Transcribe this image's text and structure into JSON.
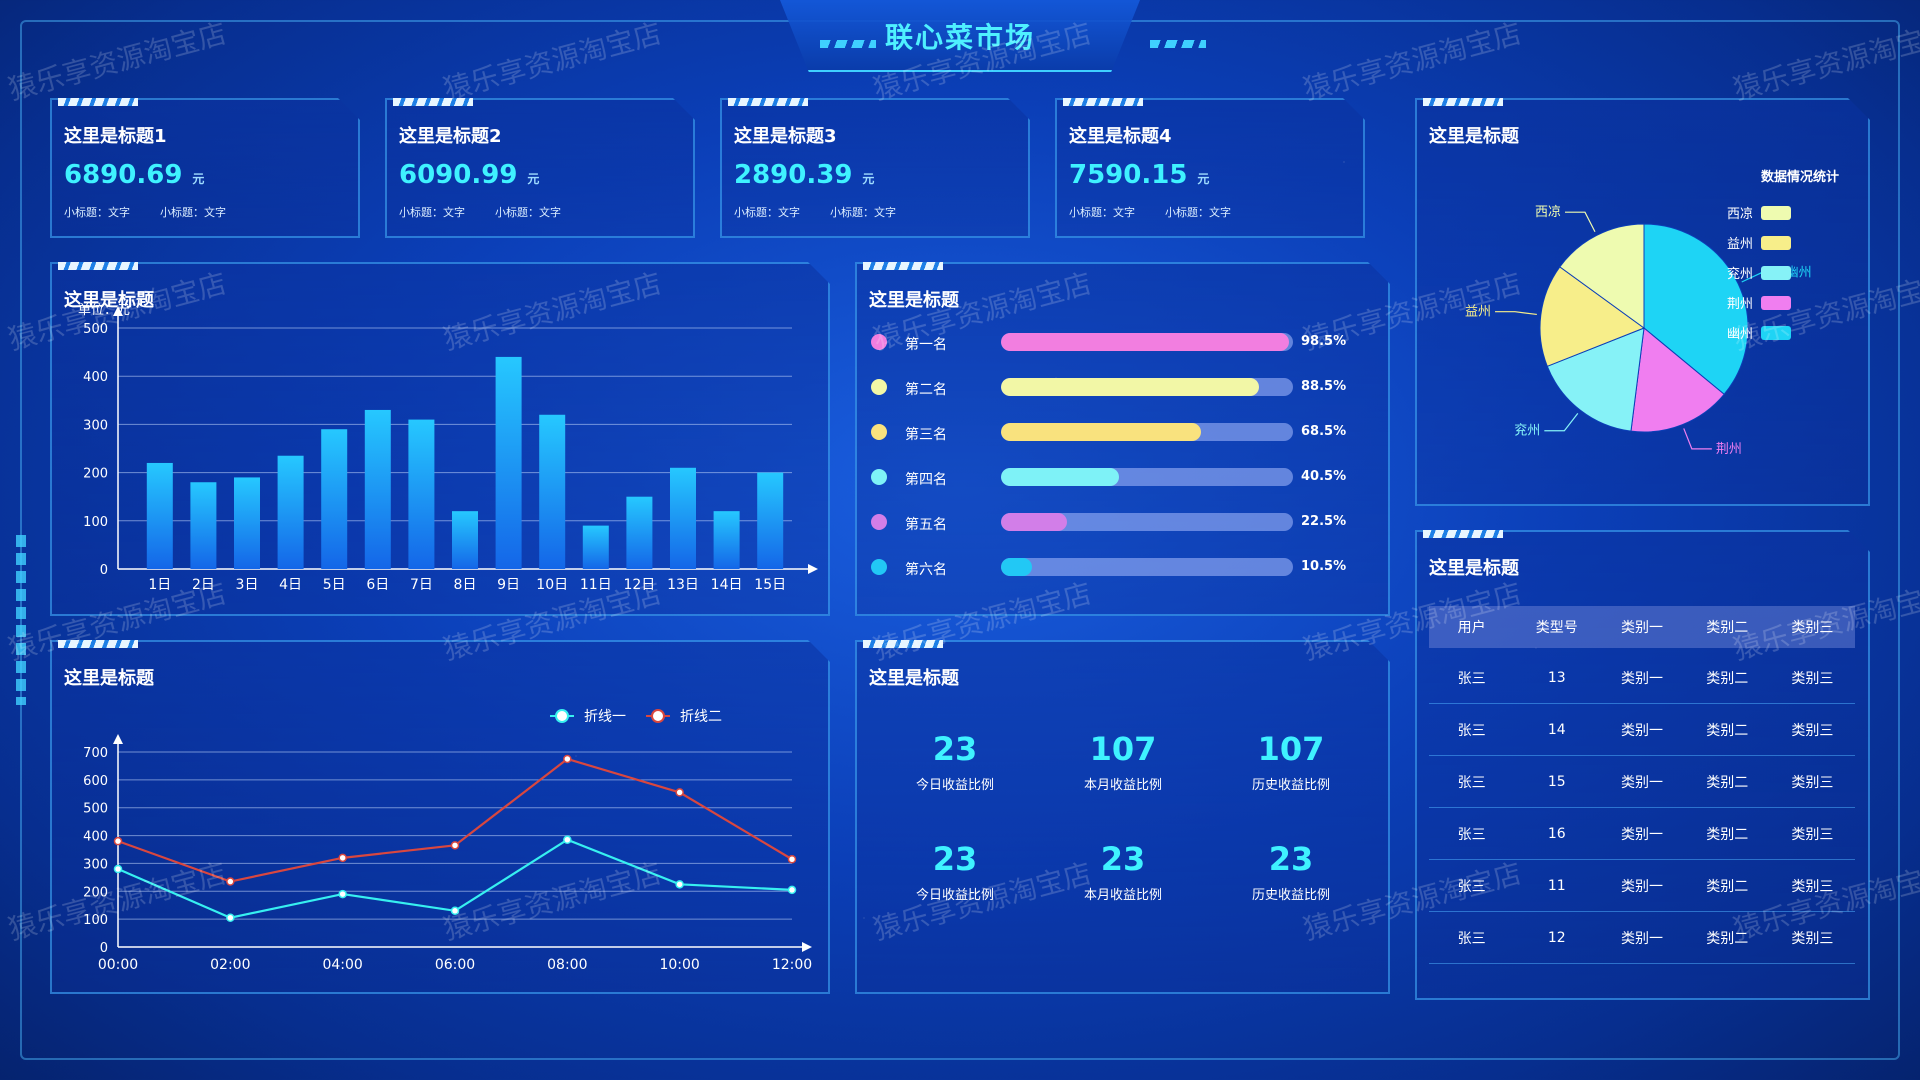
{
  "header": {
    "title": "联心菜市场"
  },
  "watermark": "猿乐享资源淘宝店",
  "stats": [
    {
      "title": "这里是标题1",
      "value": "6890.69",
      "unit": "元",
      "sub1": "小标题：文字",
      "sub2": "小标题：文字"
    },
    {
      "title": "这里是标题2",
      "value": "6090.99",
      "unit": "元",
      "sub1": "小标题：文字",
      "sub2": "小标题：文字"
    },
    {
      "title": "这里是标题3",
      "value": "2890.39",
      "unit": "元",
      "sub1": "小标题：文字",
      "sub2": "小标题：文字"
    },
    {
      "title": "这里是标题4",
      "value": "7590.15",
      "unit": "元",
      "sub1": "小标题：文字",
      "sub2": "小标题：文字"
    }
  ],
  "bar_panel": {
    "title": "这里是标题"
  },
  "line_panel": {
    "title": "这里是标题"
  },
  "rank_panel": {
    "title": "这里是标题",
    "items": [
      {
        "label": "第一名",
        "pct": "98.5%",
        "value": 98.5,
        "color": "#f27ee0"
      },
      {
        "label": "第二名",
        "pct": "88.5%",
        "value": 88.5,
        "color": "#f2f7a6"
      },
      {
        "label": "第三名",
        "pct": "68.5%",
        "value": 68.5,
        "color": "#f9e27e"
      },
      {
        "label": "第四名",
        "pct": "40.5%",
        "value": 40.5,
        "color": "#7ef2f7"
      },
      {
        "label": "第五名",
        "pct": "22.5%",
        "value": 22.5,
        "color": "#d27ee8"
      },
      {
        "label": "第六名",
        "pct": "10.5%",
        "value": 10.5,
        "color": "#22c8f5"
      }
    ]
  },
  "kpi_panel": {
    "title": "这里是标题",
    "items": [
      {
        "num": "23",
        "label": "今日收益比例"
      },
      {
        "num": "107",
        "label": "本月收益比例"
      },
      {
        "num": "107",
        "label": "历史收益比例"
      },
      {
        "num": "23",
        "label": "今日收益比例"
      },
      {
        "num": "23",
        "label": "本月收益比例"
      },
      {
        "num": "23",
        "label": "历史收益比例"
      }
    ]
  },
  "pie_panel": {
    "title": "这里是标题",
    "legend_title": "数据情况统计"
  },
  "table_panel": {
    "title": "这里是标题",
    "headers": [
      "用户",
      "类型号",
      "类别一",
      "类别二",
      "类别三"
    ],
    "rows": [
      [
        "张三",
        "13",
        "类别一",
        "类别二",
        "类别三"
      ],
      [
        "张三",
        "14",
        "类别一",
        "类别二",
        "类别三"
      ],
      [
        "张三",
        "15",
        "类别一",
        "类别二",
        "类别三"
      ],
      [
        "张三",
        "16",
        "类别一",
        "类别二",
        "类别三"
      ],
      [
        "张三",
        "11",
        "类别一",
        "类别二",
        "类别三"
      ],
      [
        "张三",
        "12",
        "类别一",
        "类别二",
        "类别三"
      ]
    ]
  },
  "chart_data": [
    {
      "type": "bar",
      "unit_label": "单位：元",
      "categories": [
        "1日",
        "2日",
        "3日",
        "4日",
        "5日",
        "6日",
        "7日",
        "8日",
        "9日",
        "10日",
        "11日",
        "12日",
        "13日",
        "14日",
        "15日"
      ],
      "values": [
        220,
        180,
        190,
        235,
        290,
        330,
        310,
        120,
        440,
        320,
        90,
        150,
        210,
        120,
        200
      ],
      "ylim": [
        0,
        500
      ],
      "yticks": [
        0,
        100,
        200,
        300,
        400,
        500
      ],
      "grid": true
    },
    {
      "type": "line",
      "x": [
        "00:00",
        "02:00",
        "04:00",
        "06:00",
        "08:00",
        "10:00",
        "12:00"
      ],
      "series": [
        {
          "name": "折线一",
          "color": "#37f0f0",
          "values": [
            280,
            105,
            190,
            130,
            385,
            225,
            205
          ]
        },
        {
          "name": "折线二",
          "color": "#d9473f",
          "values": [
            380,
            235,
            320,
            365,
            675,
            555,
            315
          ]
        }
      ],
      "ylim": [
        0,
        700
      ],
      "yticks": [
        0,
        100,
        200,
        300,
        400,
        500,
        600,
        700
      ],
      "legend": "top-right",
      "grid": true
    },
    {
      "type": "pie",
      "slices": [
        {
          "name": "幽州",
          "value": 36,
          "color": "#1ed4f5"
        },
        {
          "name": "荆州",
          "value": 16,
          "color": "#f07ef0"
        },
        {
          "name": "兖州",
          "value": 17,
          "color": "#86f2f7"
        },
        {
          "name": "益州",
          "value": 16,
          "color": "#f7ee8a"
        },
        {
          "name": "西凉",
          "value": 15,
          "color": "#eefbb0"
        }
      ],
      "legend_order": [
        "西凉",
        "益州",
        "兖州",
        "荆州",
        "幽州"
      ]
    }
  ]
}
